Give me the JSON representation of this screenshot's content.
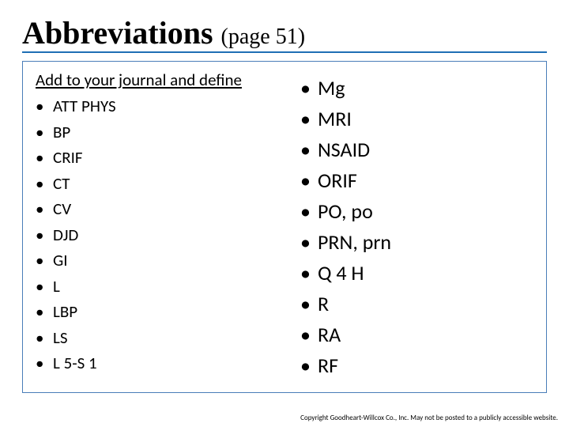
{
  "colors": {
    "title_underline": "#1f6fb5",
    "content_border": "#4a7db8",
    "background": "#ffffff",
    "text": "#000000"
  },
  "title": {
    "main": "Abbreviations",
    "sub": "(page 51)",
    "main_fontsize": 40,
    "sub_fontsize": 28,
    "font_family": "Times New Roman"
  },
  "instruction": "Add to your journal and define",
  "left_items": [
    "ATT PHYS",
    "BP",
    "CRIF",
    "CT",
    "CV",
    "DJD",
    "GI",
    "L",
    "LBP",
    "LS",
    "L 5-S 1"
  ],
  "right_items": [
    "Mg",
    "MRI",
    "NSAID",
    "ORIF",
    "PO, po",
    "PRN, prn",
    "Q 4 H",
    "R",
    "RA",
    "RF"
  ],
  "left_fontsize": 21,
  "right_fontsize": 26,
  "bullet_char": "•",
  "footer": "Copyright Goodheart-Willcox Co., Inc. May not be posted to a publicly accessible website."
}
